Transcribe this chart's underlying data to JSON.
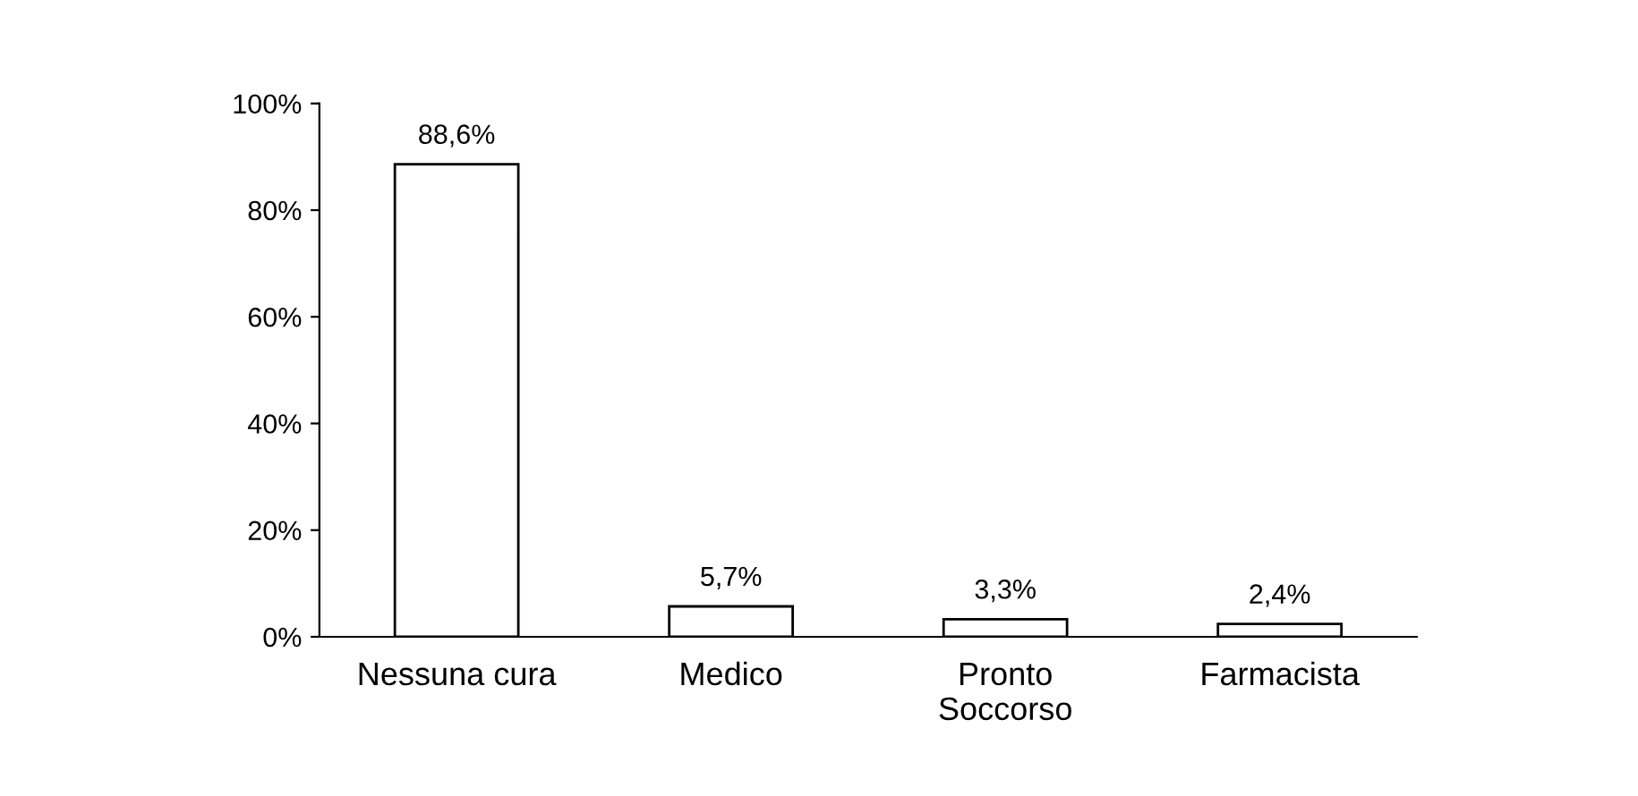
{
  "chart_data": {
    "type": "bar",
    "categories": [
      "Nessuna cura",
      "Medico",
      "Pronto\nSoccorso",
      "Farmacista"
    ],
    "values": [
      88.6,
      5.7,
      3.3,
      2.4
    ],
    "value_labels": [
      "88,6%",
      "5,7%",
      "3,3%",
      "2,4%"
    ],
    "color": "#ffffff",
    "ylim": [
      0,
      100
    ],
    "yticks": [
      {
        "value": 0,
        "label": "0%"
      },
      {
        "value": 20,
        "label": "20%"
      },
      {
        "value": 40,
        "label": "40%"
      },
      {
        "value": 60,
        "label": "60%"
      },
      {
        "value": 80,
        "label": "80%"
      },
      {
        "value": 100,
        "label": "100%"
      }
    ],
    "grid": false,
    "legend": false
  }
}
